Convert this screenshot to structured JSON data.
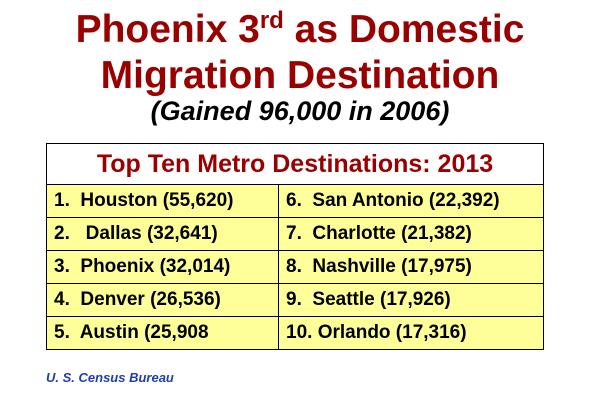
{
  "header": {
    "title_line1_main": "Phoenix 3",
    "title_line1_sup": "rd",
    "title_line1_rest": " as Domestic",
    "title_line2": "Migration Destination",
    "subtitle": "(Gained 96,000 in 2006)"
  },
  "table": {
    "title": "Top Ten Metro Destinations: 2013",
    "rows": [
      [
        "1.  Houston (55,620)",
        "6.  San Antonio (22,392)"
      ],
      [
        "2.   Dallas (32,641)",
        "7.  Charlotte (21,382)"
      ],
      [
        "3.  Phoenix (32,014)",
        "8.  Nashville (17,975)"
      ],
      [
        "4.  Denver (26,536)",
        "9.  Seattle (17,926)"
      ],
      [
        "5.  Austin (25,908",
        "10. Orlando (17,316)"
      ]
    ]
  },
  "footer": {
    "source": "U. S. Census Bureau"
  }
}
